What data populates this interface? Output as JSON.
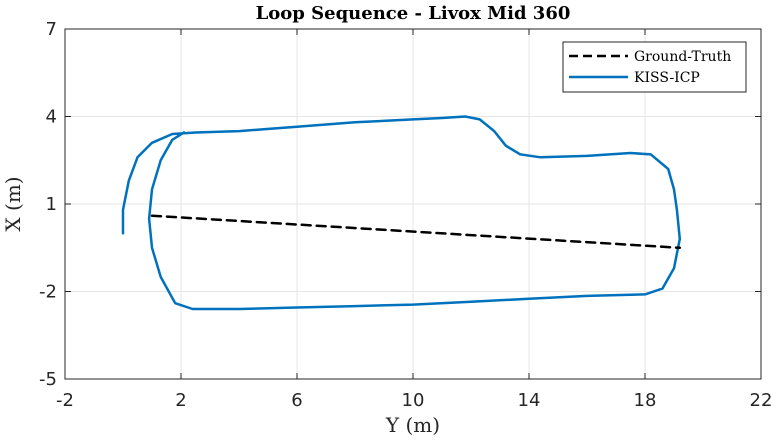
{
  "chart_data": {
    "type": "line",
    "title": "Loop Sequence - Livox Mid 360",
    "xlabel": "Y (m)",
    "ylabel": "X (m)",
    "xlim": [
      -2,
      22
    ],
    "ylim": [
      -5,
      7
    ],
    "xticks": [
      -2,
      2,
      6,
      10,
      14,
      18,
      22
    ],
    "yticks": [
      -5,
      -2,
      1,
      4,
      7
    ],
    "grid": true,
    "legend_position": "top-right",
    "series": [
      {
        "name": "Ground-Truth",
        "style": "dashed",
        "color": "#000000",
        "points": [
          [
            1.0,
            0.6
          ],
          [
            19.2,
            -0.5
          ]
        ]
      },
      {
        "name": "KISS-ICP",
        "style": "solid",
        "color": "#0072BD",
        "points": [
          [
            0.0,
            0.0
          ],
          [
            0.0,
            0.8
          ],
          [
            0.2,
            1.8
          ],
          [
            0.5,
            2.6
          ],
          [
            1.0,
            3.1
          ],
          [
            1.7,
            3.4
          ],
          [
            2.5,
            3.45
          ],
          [
            4.0,
            3.5
          ],
          [
            6.0,
            3.65
          ],
          [
            8.0,
            3.8
          ],
          [
            10.0,
            3.9
          ],
          [
            11.0,
            3.95
          ],
          [
            11.8,
            4.0
          ],
          [
            12.3,
            3.9
          ],
          [
            12.8,
            3.5
          ],
          [
            13.2,
            3.0
          ],
          [
            13.7,
            2.7
          ],
          [
            14.4,
            2.6
          ],
          [
            16.0,
            2.65
          ],
          [
            17.5,
            2.75
          ],
          [
            18.2,
            2.7
          ],
          [
            18.8,
            2.2
          ],
          [
            19.0,
            1.5
          ],
          [
            19.1,
            0.8
          ],
          [
            19.2,
            -0.2
          ],
          [
            19.0,
            -1.2
          ],
          [
            18.6,
            -1.9
          ],
          [
            18.0,
            -2.1
          ],
          [
            16.0,
            -2.15
          ],
          [
            14.0,
            -2.25
          ],
          [
            12.0,
            -2.35
          ],
          [
            10.0,
            -2.45
          ],
          [
            8.0,
            -2.5
          ],
          [
            6.0,
            -2.55
          ],
          [
            4.0,
            -2.6
          ],
          [
            2.4,
            -2.6
          ],
          [
            1.8,
            -2.4
          ],
          [
            1.3,
            -1.5
          ],
          [
            1.0,
            -0.5
          ],
          [
            0.9,
            0.5
          ],
          [
            1.0,
            1.5
          ],
          [
            1.3,
            2.5
          ],
          [
            1.7,
            3.2
          ],
          [
            2.1,
            3.45
          ]
        ]
      }
    ]
  }
}
